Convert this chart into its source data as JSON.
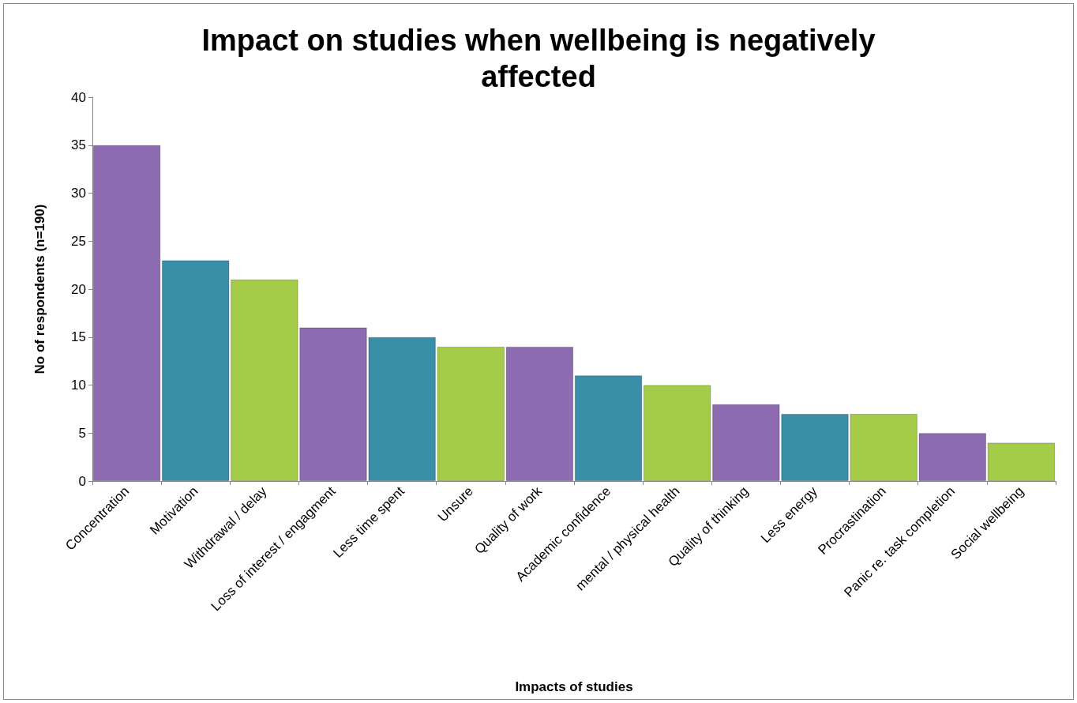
{
  "chart_data": {
    "type": "bar",
    "title": "Impact on studies when wellbeing is negatively\naffected",
    "xlabel": "Impacts of studies",
    "ylabel": "No of respondents (n=190)",
    "categories": [
      "Concentration",
      "Motivation",
      "Withdrawal / delay",
      "Loss of interest / engagment",
      "Less time spent",
      "Unsure",
      "Quality of work",
      "Academic confidence",
      "mental / physical health",
      "Quality of thinking",
      "Less energy",
      "Procrastination",
      "Panic re. task completion",
      "Social wellbeing"
    ],
    "values": [
      35,
      23,
      21,
      16,
      15,
      14,
      14,
      11,
      10,
      8,
      7,
      7,
      5,
      4
    ],
    "colors": [
      "#8c6bb1",
      "#3a8fa8",
      "#a5cc48",
      "#8c6bb1",
      "#3a8fa8",
      "#a5cc48",
      "#8c6bb1",
      "#3a8fa8",
      "#a5cc48",
      "#8c6bb1",
      "#3a8fa8",
      "#a5cc48",
      "#8c6bb1",
      "#a5cc48"
    ],
    "ylim": [
      0,
      40
    ],
    "yticks": [
      0,
      5,
      10,
      15,
      20,
      25,
      30,
      35,
      40
    ],
    "grid": false
  }
}
